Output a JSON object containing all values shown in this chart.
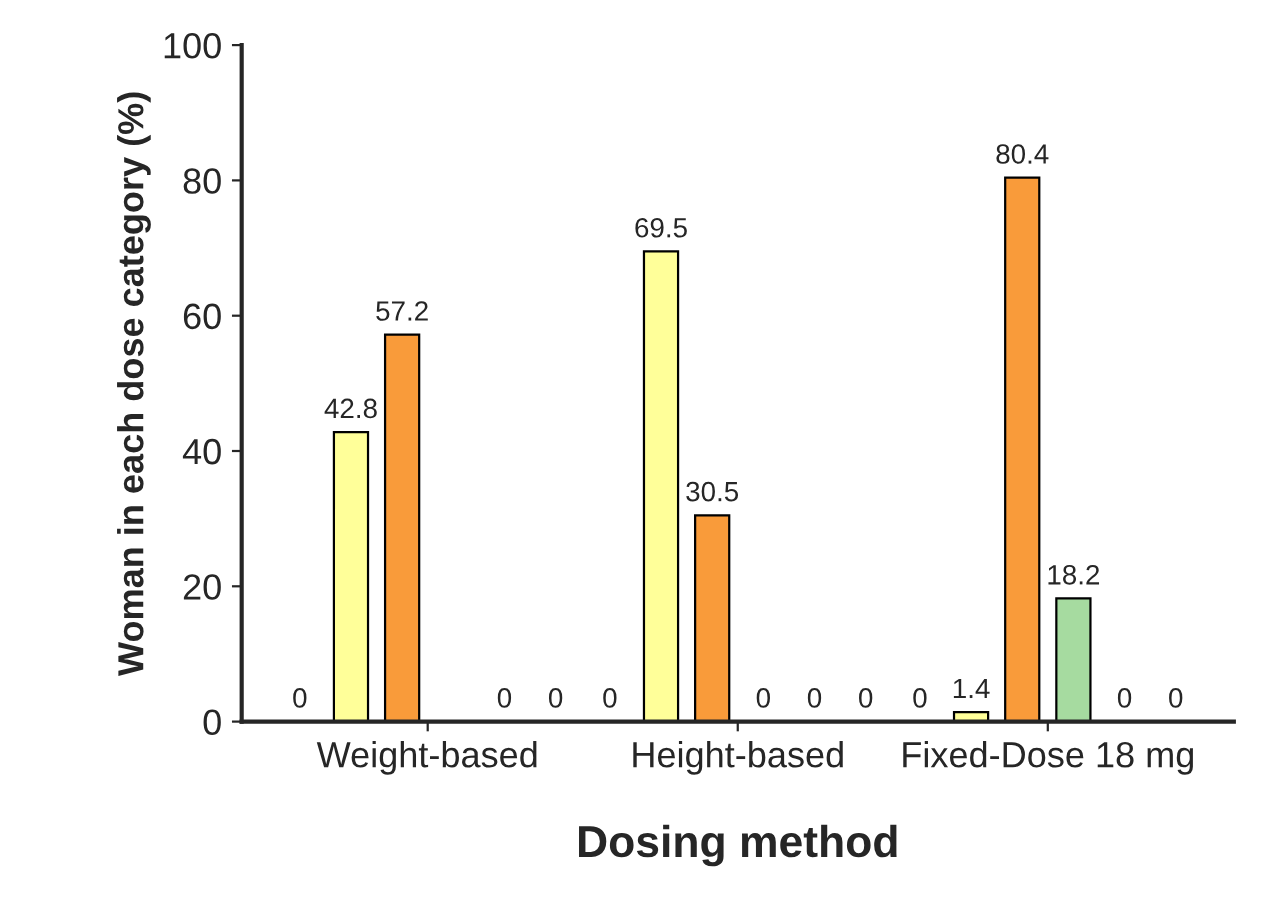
{
  "chart_data": {
    "type": "bar",
    "xlabel": "Dosing method",
    "ylabel": "Woman in each dose category (%)",
    "categories": [
      "Weight-based",
      "Height-based",
      "Fixed-Dose 18 mg"
    ],
    "series": [
      {
        "color": "#d9d9d9",
        "values": [
          0,
          0,
          0
        ],
        "value_labels": [
          "0",
          "0",
          "0"
        ]
      },
      {
        "color": "#ffff99",
        "values": [
          42.8,
          69.5,
          1.4
        ],
        "value_labels": [
          "42.8",
          "69.5",
          "1.4"
        ]
      },
      {
        "color": "#f99b3a",
        "values": [
          57.2,
          30.5,
          80.4
        ],
        "value_labels": [
          "57.2",
          "30.5",
          "80.4"
        ]
      },
      {
        "color": "#a6dba0",
        "values": [
          0,
          0,
          18.2
        ],
        "value_labels": [
          null,
          "0",
          "18.2"
        ]
      },
      {
        "color": "#9ecae1",
        "values": [
          0,
          0,
          0
        ],
        "value_labels": [
          "0",
          "0",
          "0"
        ]
      },
      {
        "color": "#c2a5cf",
        "values": [
          0,
          0,
          0
        ],
        "value_labels": [
          "0",
          "0",
          "0"
        ]
      }
    ],
    "ylim": [
      0,
      100
    ],
    "yticks": [
      0,
      20,
      40,
      60,
      80,
      100
    ]
  }
}
